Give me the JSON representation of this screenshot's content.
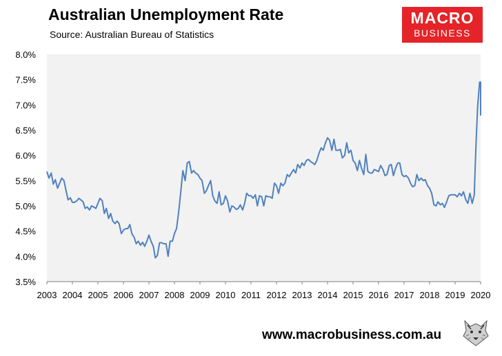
{
  "header": {
    "title": "Australian Unemployment Rate",
    "source": "Source: Australian Bureau of Statistics"
  },
  "logo": {
    "line1": "MACRO",
    "line2": "BUSINESS",
    "color": "#e42428"
  },
  "footer": {
    "website": "www.macrobusiness.com.au"
  },
  "colors": {
    "line": "#4f81bd",
    "plot_bg": "#f2f2f2"
  },
  "chart_data": {
    "type": "line",
    "title": "Australian Unemployment Rate",
    "subtitle": "Source: Australian Bureau of Statistics",
    "xlabel": "",
    "ylabel": "",
    "x_range": [
      2003.0,
      2020.0
    ],
    "ylim": [
      3.5,
      8.0
    ],
    "yticks": [
      3.5,
      4.0,
      4.5,
      5.0,
      5.5,
      6.0,
      6.5,
      7.0,
      7.5,
      8.0
    ],
    "ytick_labels": [
      "3.5%",
      "4.0%",
      "4.5%",
      "5.0%",
      "5.5%",
      "6.0%",
      "6.5%",
      "7.0%",
      "7.5%",
      "8.0%"
    ],
    "xticks": [
      2003,
      2004,
      2005,
      2006,
      2007,
      2008,
      2009,
      2010,
      2011,
      2012,
      2013,
      2014,
      2015,
      2016,
      2017,
      2018,
      2019,
      2020
    ],
    "xtick_labels": [
      "2003",
      "2004",
      "2005",
      "2006",
      "2007",
      "2008",
      "2009",
      "2010",
      "2011",
      "2012",
      "2013",
      "2014",
      "2015",
      "2016",
      "2017",
      "2018",
      "2019",
      "2020"
    ],
    "grid": false,
    "legend": "none",
    "series": [
      {
        "points": [
          [
            2003.0,
            5.68
          ],
          [
            2003.08,
            5.55
          ],
          [
            2003.17,
            5.65
          ],
          [
            2003.25,
            5.43
          ],
          [
            2003.33,
            5.52
          ],
          [
            2003.42,
            5.35
          ],
          [
            2003.5,
            5.45
          ],
          [
            2003.58,
            5.55
          ],
          [
            2003.67,
            5.5
          ],
          [
            2003.75,
            5.3
          ],
          [
            2003.83,
            5.12
          ],
          [
            2003.92,
            5.16
          ],
          [
            2004.0,
            5.07
          ],
          [
            2004.08,
            5.07
          ],
          [
            2004.17,
            5.1
          ],
          [
            2004.25,
            5.15
          ],
          [
            2004.33,
            5.12
          ],
          [
            2004.42,
            5.08
          ],
          [
            2004.5,
            4.95
          ],
          [
            2004.58,
            4.98
          ],
          [
            2004.67,
            4.92
          ],
          [
            2004.75,
            5.0
          ],
          [
            2004.83,
            4.98
          ],
          [
            2004.92,
            4.95
          ],
          [
            2005.0,
            5.05
          ],
          [
            2005.08,
            5.15
          ],
          [
            2005.17,
            5.1
          ],
          [
            2005.25,
            4.85
          ],
          [
            2005.33,
            4.95
          ],
          [
            2005.42,
            4.75
          ],
          [
            2005.5,
            4.85
          ],
          [
            2005.58,
            4.7
          ],
          [
            2005.67,
            4.65
          ],
          [
            2005.75,
            4.7
          ],
          [
            2005.83,
            4.65
          ],
          [
            2005.92,
            4.45
          ],
          [
            2006.0,
            4.52
          ],
          [
            2006.08,
            4.55
          ],
          [
            2006.17,
            4.55
          ],
          [
            2006.25,
            4.63
          ],
          [
            2006.33,
            4.45
          ],
          [
            2006.42,
            4.38
          ],
          [
            2006.5,
            4.25
          ],
          [
            2006.58,
            4.3
          ],
          [
            2006.67,
            4.22
          ],
          [
            2006.75,
            4.28
          ],
          [
            2006.83,
            4.2
          ],
          [
            2006.92,
            4.3
          ],
          [
            2007.0,
            4.42
          ],
          [
            2007.08,
            4.3
          ],
          [
            2007.17,
            4.2
          ],
          [
            2007.25,
            3.97
          ],
          [
            2007.33,
            4.02
          ],
          [
            2007.42,
            4.27
          ],
          [
            2007.5,
            4.27
          ],
          [
            2007.58,
            4.25
          ],
          [
            2007.67,
            4.25
          ],
          [
            2007.75,
            4.0
          ],
          [
            2007.83,
            4.3
          ],
          [
            2007.92,
            4.3
          ],
          [
            2008.0,
            4.45
          ],
          [
            2008.08,
            4.55
          ],
          [
            2008.17,
            4.9
          ],
          [
            2008.25,
            5.3
          ],
          [
            2008.33,
            5.7
          ],
          [
            2008.42,
            5.5
          ],
          [
            2008.5,
            5.85
          ],
          [
            2008.58,
            5.88
          ],
          [
            2008.67,
            5.65
          ],
          [
            2008.75,
            5.7
          ],
          [
            2008.83,
            5.65
          ],
          [
            2008.92,
            5.62
          ],
          [
            2009.0,
            5.55
          ],
          [
            2009.08,
            5.5
          ],
          [
            2009.17,
            5.25
          ],
          [
            2009.25,
            5.3
          ],
          [
            2009.33,
            5.4
          ],
          [
            2009.42,
            5.5
          ],
          [
            2009.5,
            5.2
          ],
          [
            2009.58,
            5.1
          ],
          [
            2009.67,
            5.05
          ],
          [
            2009.75,
            5.28
          ],
          [
            2009.83,
            5.02
          ],
          [
            2009.92,
            5.05
          ],
          [
            2010.0,
            5.2
          ],
          [
            2010.08,
            5.1
          ],
          [
            2010.17,
            4.88
          ],
          [
            2010.25,
            5.0
          ],
          [
            2010.33,
            4.98
          ],
          [
            2010.42,
            4.93
          ],
          [
            2010.5,
            4.95
          ],
          [
            2010.58,
            5.02
          ],
          [
            2010.67,
            4.92
          ],
          [
            2010.75,
            5.05
          ],
          [
            2010.83,
            5.25
          ],
          [
            2010.92,
            5.2
          ],
          [
            2011.0,
            5.2
          ],
          [
            2011.08,
            5.15
          ],
          [
            2011.17,
            5.22
          ],
          [
            2011.25,
            5.0
          ],
          [
            2011.33,
            5.2
          ],
          [
            2011.42,
            5.18
          ],
          [
            2011.5,
            5.0
          ],
          [
            2011.58,
            5.2
          ],
          [
            2011.67,
            5.18
          ],
          [
            2011.75,
            5.18
          ],
          [
            2011.83,
            5.15
          ],
          [
            2011.92,
            5.45
          ],
          [
            2012.0,
            5.4
          ],
          [
            2012.08,
            5.25
          ],
          [
            2012.17,
            5.45
          ],
          [
            2012.25,
            5.4
          ],
          [
            2012.33,
            5.45
          ],
          [
            2012.42,
            5.62
          ],
          [
            2012.5,
            5.58
          ],
          [
            2012.58,
            5.65
          ],
          [
            2012.67,
            5.72
          ],
          [
            2012.75,
            5.65
          ],
          [
            2012.83,
            5.82
          ],
          [
            2012.92,
            5.75
          ],
          [
            2013.0,
            5.85
          ],
          [
            2013.08,
            5.8
          ],
          [
            2013.17,
            5.9
          ],
          [
            2013.25,
            5.92
          ],
          [
            2013.33,
            5.88
          ],
          [
            2013.42,
            5.85
          ],
          [
            2013.5,
            5.82
          ],
          [
            2013.58,
            5.9
          ],
          [
            2013.67,
            6.05
          ],
          [
            2013.75,
            6.15
          ],
          [
            2013.83,
            6.1
          ],
          [
            2013.92,
            6.25
          ],
          [
            2014.0,
            6.35
          ],
          [
            2014.08,
            6.3
          ],
          [
            2014.17,
            6.1
          ],
          [
            2014.25,
            6.32
          ],
          [
            2014.33,
            6.1
          ],
          [
            2014.42,
            6.1
          ],
          [
            2014.5,
            6.12
          ],
          [
            2014.58,
            5.95
          ],
          [
            2014.67,
            6.0
          ],
          [
            2014.75,
            6.25
          ],
          [
            2014.83,
            6.05
          ],
          [
            2014.92,
            6.1
          ],
          [
            2015.0,
            5.9
          ],
          [
            2015.08,
            5.85
          ],
          [
            2015.17,
            5.7
          ],
          [
            2015.25,
            5.9
          ],
          [
            2015.33,
            5.75
          ],
          [
            2015.42,
            5.62
          ],
          [
            2015.5,
            6.02
          ],
          [
            2015.58,
            5.68
          ],
          [
            2015.67,
            5.65
          ],
          [
            2015.75,
            5.65
          ],
          [
            2015.83,
            5.72
          ],
          [
            2015.92,
            5.7
          ],
          [
            2016.0,
            5.68
          ],
          [
            2016.08,
            5.8
          ],
          [
            2016.17,
            5.72
          ],
          [
            2016.25,
            5.6
          ],
          [
            2016.33,
            5.62
          ],
          [
            2016.42,
            5.8
          ],
          [
            2016.5,
            5.82
          ],
          [
            2016.58,
            5.6
          ],
          [
            2016.67,
            5.75
          ],
          [
            2016.75,
            5.85
          ],
          [
            2016.83,
            5.85
          ],
          [
            2016.92,
            5.62
          ],
          [
            2017.0,
            5.58
          ],
          [
            2017.08,
            5.6
          ],
          [
            2017.17,
            5.55
          ],
          [
            2017.25,
            5.45
          ],
          [
            2017.33,
            5.38
          ],
          [
            2017.42,
            5.4
          ],
          [
            2017.5,
            5.62
          ],
          [
            2017.58,
            5.5
          ],
          [
            2017.67,
            5.55
          ],
          [
            2017.75,
            5.5
          ],
          [
            2017.83,
            5.52
          ],
          [
            2017.92,
            5.4
          ],
          [
            2018.0,
            5.35
          ],
          [
            2018.08,
            5.25
          ],
          [
            2018.17,
            5.02
          ],
          [
            2018.25,
            5.0
          ],
          [
            2018.33,
            5.08
          ],
          [
            2018.42,
            5.02
          ],
          [
            2018.5,
            5.05
          ],
          [
            2018.58,
            4.97
          ],
          [
            2018.67,
            5.08
          ],
          [
            2018.75,
            5.2
          ],
          [
            2018.83,
            5.22
          ],
          [
            2018.92,
            5.22
          ],
          [
            2019.0,
            5.22
          ],
          [
            2019.08,
            5.18
          ],
          [
            2019.17,
            5.25
          ],
          [
            2019.25,
            5.2
          ],
          [
            2019.33,
            5.28
          ],
          [
            2019.42,
            5.12
          ],
          [
            2019.5,
            5.05
          ],
          [
            2019.58,
            5.25
          ],
          [
            2019.67,
            5.05
          ],
          [
            2019.75,
            5.22
          ],
          [
            2019.79,
            5.8
          ],
          [
            2019.83,
            6.35
          ],
          [
            2019.88,
            6.95
          ],
          [
            2019.92,
            7.2
          ],
          [
            2019.96,
            7.45
          ],
          [
            2020.0,
            7.45
          ],
          [
            2020.04,
            7.45
          ],
          [
            2020.08,
            6.8
          ],
          [
            2020.17,
            6.9
          ],
          [
            2020.25,
            7.0
          ],
          [
            2020.33,
            6.8
          ]
        ]
      }
    ]
  }
}
